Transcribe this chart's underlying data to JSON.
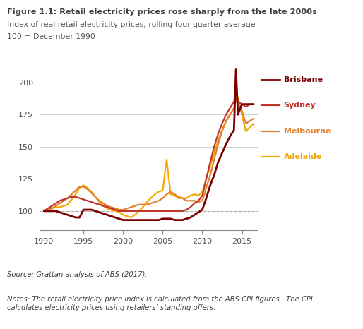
{
  "title_bold": "Figure 1.1: Retail electricity prices rose sharply from the late 2000s",
  "title_sub1": "Index of real retail electricity prices, rolling four-quarter average",
  "title_sub2": "100 = December 1990",
  "source": "Source: Grattan analysis of ABS (2017).",
  "notes": "Notes: The retail electricity price index is calculated from the ABS CPI figures.  The CPI\ncalculates electricity prices using retailers’ standing offers.",
  "ylim": [
    85,
    218
  ],
  "yticks": [
    100,
    125,
    150,
    175,
    200
  ],
  "xlim": [
    1989.5,
    2017.0
  ],
  "xticks": [
    1990,
    1995,
    2000,
    2005,
    2010,
    2015
  ],
  "colors": {
    "Brisbane": "#7B0000",
    "Sydney": "#C0352B",
    "Melbourne": "#E08030",
    "Adelaide": "#F5A800"
  },
  "linewidths": {
    "Brisbane": 2.0,
    "Sydney": 1.6,
    "Melbourne": 1.6,
    "Adelaide": 1.6
  },
  "background": "#ffffff",
  "grid_color": "#d0d0d0",
  "years": [
    1990,
    1990.5,
    1991,
    1991.5,
    1992,
    1992.5,
    1993,
    1993.5,
    1994,
    1994.5,
    1995,
    1995.5,
    1996,
    1996.5,
    1997,
    1997.5,
    1998,
    1998.5,
    1999,
    1999.5,
    2000,
    2000.5,
    2001,
    2001.5,
    2002,
    2002.5,
    2003,
    2003.5,
    2004,
    2004.5,
    2005,
    2005.5,
    2006,
    2006.5,
    2007,
    2007.5,
    2008,
    2008.5,
    2009,
    2009.5,
    2010,
    2010.5,
    2011,
    2011.5,
    2012,
    2012.5,
    2013,
    2013.5,
    2014,
    2014.25,
    2014.5,
    2015,
    2015.5,
    2016,
    2016.5
  ],
  "Brisbane": [
    100,
    100,
    100,
    100,
    99,
    98,
    97,
    96,
    95,
    95,
    101,
    101,
    101,
    100,
    99,
    98,
    97,
    96,
    95,
    94,
    93,
    93,
    93,
    93,
    93,
    93,
    93,
    93,
    93,
    93,
    94,
    94,
    94,
    93,
    93,
    93,
    94,
    95,
    97,
    99,
    101,
    110,
    120,
    128,
    138,
    145,
    152,
    158,
    163,
    210,
    175,
    183,
    183,
    183,
    183
  ],
  "Sydney": [
    100,
    102,
    104,
    106,
    108,
    109,
    110,
    111,
    111,
    110,
    109,
    108,
    107,
    106,
    105,
    104,
    103,
    102,
    101,
    100,
    100,
    100,
    100,
    100,
    100,
    100,
    100,
    100,
    100,
    100,
    100,
    100,
    100,
    100,
    100,
    100,
    101,
    103,
    106,
    108,
    112,
    125,
    138,
    150,
    160,
    168,
    175,
    180,
    185,
    195,
    185,
    183,
    181,
    183,
    183
  ],
  "Melbourne": [
    100,
    101,
    102,
    104,
    106,
    108,
    110,
    113,
    116,
    119,
    119,
    117,
    114,
    111,
    108,
    106,
    104,
    103,
    102,
    101,
    101,
    102,
    103,
    104,
    105,
    105,
    105,
    106,
    107,
    108,
    110,
    113,
    115,
    113,
    111,
    110,
    108,
    108,
    108,
    107,
    108,
    118,
    128,
    140,
    152,
    162,
    170,
    175,
    180,
    188,
    182,
    178,
    168,
    170,
    172
  ],
  "Adelaide": [
    100,
    101,
    102,
    103,
    103,
    104,
    105,
    109,
    113,
    118,
    120,
    118,
    115,
    111,
    107,
    104,
    102,
    101,
    100,
    99,
    97,
    96,
    95,
    97,
    100,
    103,
    107,
    110,
    113,
    115,
    116,
    140,
    113,
    112,
    110,
    110,
    110,
    112,
    113,
    112,
    115,
    125,
    135,
    145,
    155,
    163,
    170,
    175,
    180,
    192,
    188,
    175,
    162,
    165,
    168
  ]
}
